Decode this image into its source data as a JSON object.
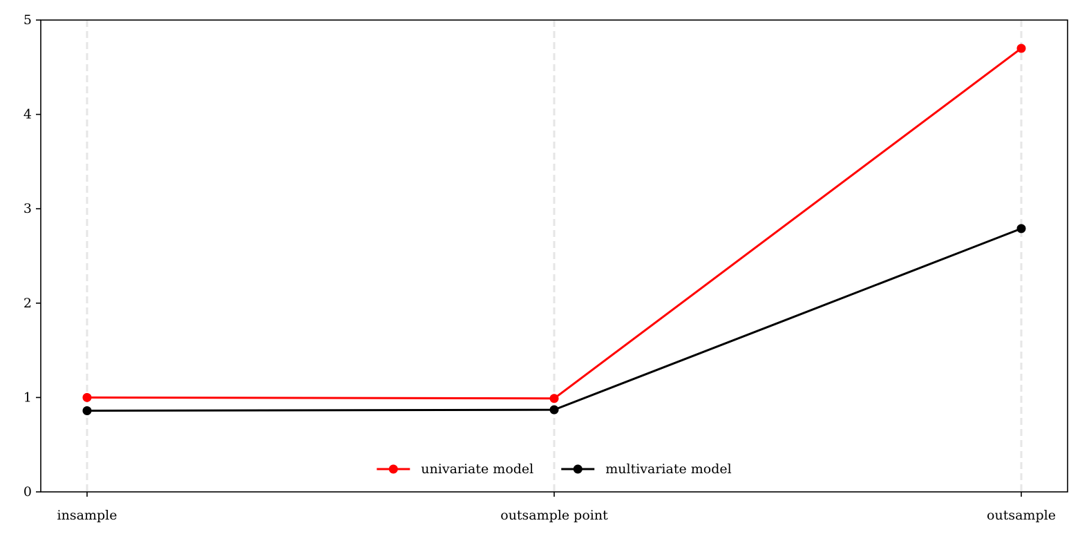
{
  "chart_data": {
    "type": "line",
    "categories": [
      "insample",
      "outsample point",
      "outsample"
    ],
    "series": [
      {
        "name": "univariate model",
        "color": "#ff0000",
        "values": [
          1.0,
          0.99,
          4.7
        ]
      },
      {
        "name": "multivariate model",
        "color": "#000000",
        "values": [
          0.86,
          0.87,
          2.79
        ]
      }
    ],
    "title": "",
    "xlabel": "",
    "ylabel": "",
    "ylim": [
      0,
      5
    ],
    "yticks": [
      "0",
      "1",
      "2",
      "3",
      "4",
      "5"
    ],
    "grid": "vertical dashed at categories",
    "legend_position": "lower center"
  }
}
